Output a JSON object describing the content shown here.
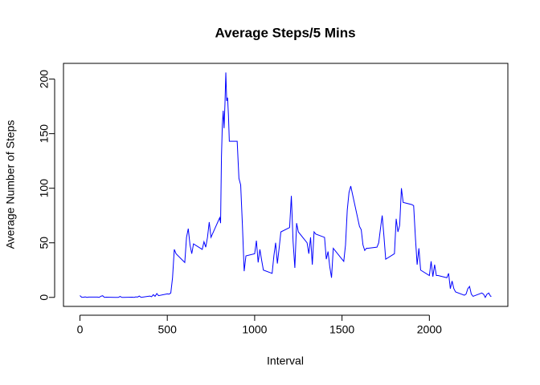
{
  "chart_data": {
    "type": "line",
    "title": "Average Steps/5 Mins",
    "x_label": "Interval",
    "y_label": "Average Number of Steps",
    "color": "#0000ff",
    "x": [
      0,
      10,
      20,
      30,
      40,
      50,
      100,
      110,
      120,
      130,
      140,
      150,
      200,
      210,
      220,
      230,
      240,
      250,
      300,
      310,
      320,
      330,
      340,
      350,
      400,
      410,
      420,
      430,
      440,
      450,
      500,
      510,
      520,
      530,
      540,
      550,
      600,
      610,
      620,
      630,
      640,
      650,
      700,
      710,
      720,
      730,
      740,
      750,
      800,
      805,
      810,
      815,
      820,
      825,
      830,
      835,
      840,
      845,
      850,
      855,
      900,
      910,
      920,
      930,
      940,
      950,
      1000,
      1010,
      1020,
      1030,
      1040,
      1050,
      1100,
      1110,
      1120,
      1130,
      1140,
      1150,
      1200,
      1210,
      1220,
      1230,
      1240,
      1250,
      1300,
      1310,
      1320,
      1330,
      1340,
      1350,
      1400,
      1410,
      1420,
      1430,
      1440,
      1450,
      1500,
      1510,
      1520,
      1530,
      1540,
      1550,
      1600,
      1610,
      1620,
      1630,
      1640,
      1650,
      1700,
      1710,
      1720,
      1730,
      1740,
      1750,
      1800,
      1810,
      1820,
      1830,
      1840,
      1850,
      1900,
      1910,
      1920,
      1930,
      1940,
      1950,
      2000,
      2010,
      2020,
      2030,
      2040,
      2050,
      2100,
      2110,
      2120,
      2130,
      2140,
      2150,
      2200,
      2210,
      2220,
      2230,
      2240,
      2250,
      2300,
      2310,
      2320,
      2330,
      2340,
      2350,
      2355
    ],
    "values": [
      1.7,
      0.1,
      0.1,
      0.5,
      0,
      0.3,
      0.3,
      0,
      1.1,
      1.5,
      0,
      0.2,
      0,
      0,
      0,
      0.9,
      0,
      0,
      0.2,
      0,
      0.5,
      0.3,
      1.2,
      0,
      1.2,
      0.6,
      2.5,
      1,
      3.5,
      1.6,
      3.2,
      3,
      4,
      18,
      44,
      40,
      32,
      55,
      63,
      48,
      40,
      49,
      44,
      51,
      46,
      55,
      69,
      55,
      73,
      68,
      129,
      158,
      171,
      155,
      177,
      206,
      180,
      183,
      167,
      143,
      143,
      109,
      103,
      66,
      24,
      38,
      40,
      52,
      32,
      44,
      34,
      25,
      22,
      38,
      50,
      31,
      45,
      60,
      64,
      93,
      51,
      27,
      68,
      60,
      50,
      40,
      55,
      30,
      60,
      58,
      55,
      35,
      42,
      28,
      18,
      45,
      35,
      33,
      48,
      80,
      96,
      102,
      65,
      62,
      48,
      43,
      45,
      45,
      46,
      50,
      63,
      75,
      56,
      35,
      40,
      72,
      60,
      66,
      100,
      87,
      85,
      84,
      55,
      30,
      45,
      25,
      20,
      33,
      19,
      30,
      20,
      20,
      18,
      22,
      8,
      15,
      8,
      5,
      2,
      3,
      8,
      10,
      3,
      1,
      4,
      3,
      0,
      3,
      4,
      1,
      1
    ],
    "xlim": [
      -94.2,
      2449.2
    ],
    "ylim": [
      -8.25,
      214.4
    ],
    "xticks": [
      0,
      500,
      1000,
      1500,
      2000
    ],
    "yticks": [
      0,
      50,
      100,
      150,
      200
    ]
  }
}
